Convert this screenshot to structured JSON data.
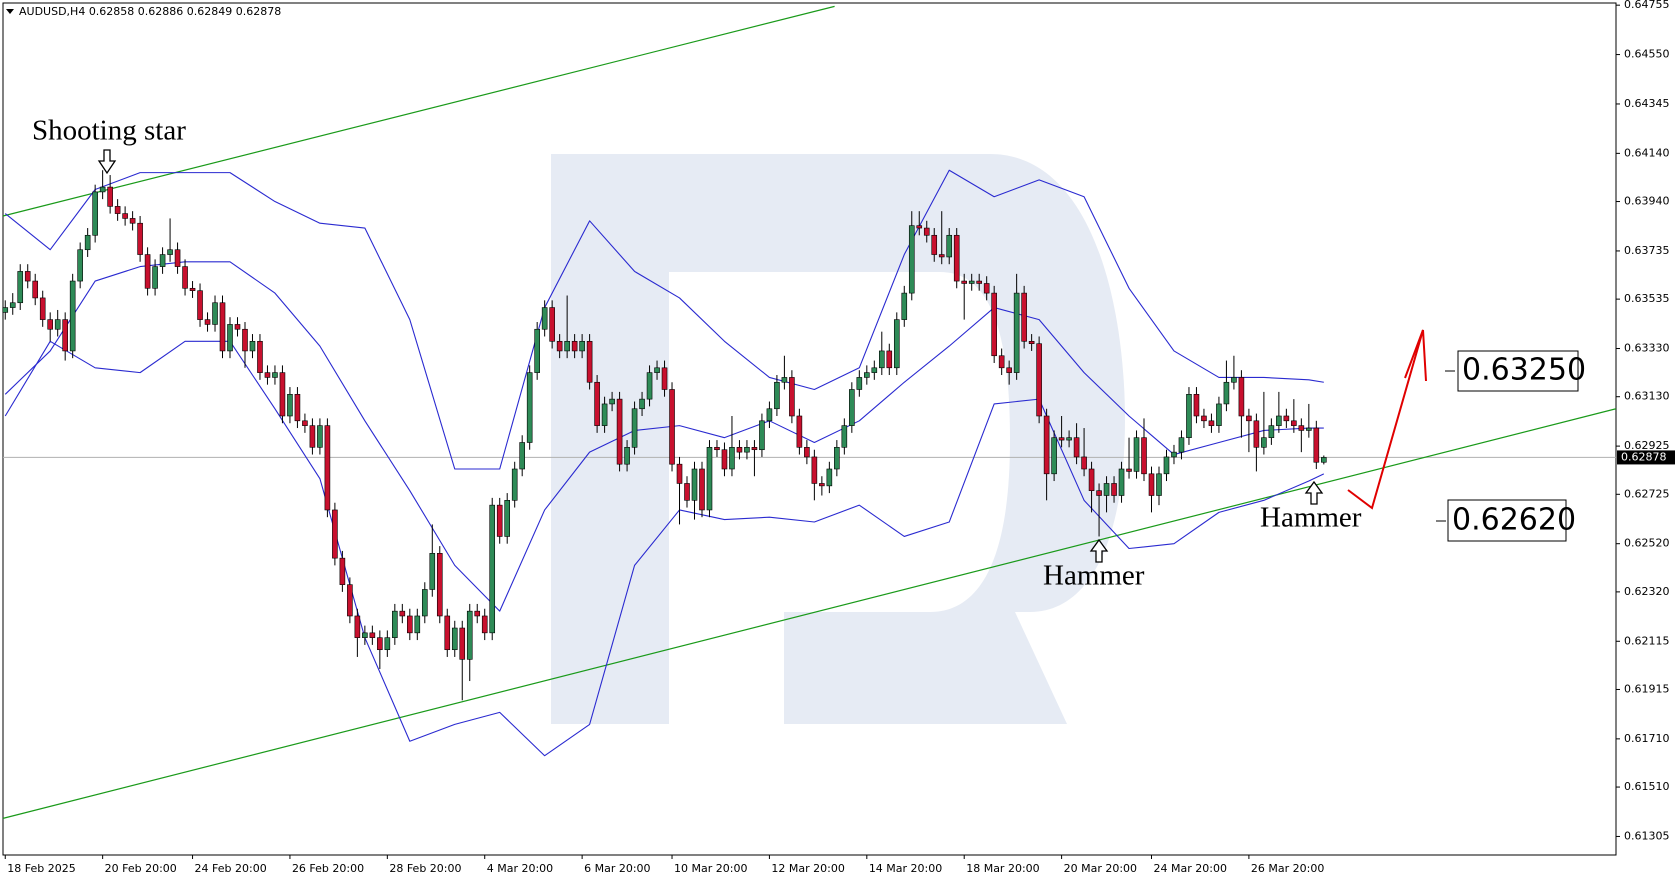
{
  "chart_data": {
    "type": "candlestick",
    "header": "AUDUSD,H4  0.62858 0.62886 0.62849 0.62878",
    "up_color": "#2e8b57",
    "down_color": "#c8102e",
    "xlim": [
      -0.3,
      215
    ],
    "ylim": [
      0.61228,
      0.64764
    ],
    "yticks": [
      0.64755,
      {
        "value": 0.6455,
        "label": "0.64550"
      },
      0.64345,
      {
        "value": 0.6414,
        "label": "0.64140"
      },
      {
        "value": 0.6394,
        "label": "0.63940"
      },
      0.63735,
      0.63535,
      {
        "value": 0.6333,
        "label": "0.63330"
      },
      {
        "value": 0.6313,
        "label": "0.63130"
      },
      0.62925,
      0.62725,
      {
        "value": 0.6252,
        "label": "0.62520"
      },
      {
        "value": 0.6232,
        "label": "0.62320"
      },
      0.62115,
      0.61915,
      {
        "value": 0.6171,
        "label": "0.61710"
      },
      {
        "value": 0.6151,
        "label": "0.61510"
      },
      0.61305
    ],
    "xticks": [
      {
        "value": 0,
        "label": "18 Feb 2025"
      },
      {
        "value": 13,
        "label": "20 Feb 20:00"
      },
      {
        "value": 25,
        "label": "24 Feb 20:00"
      },
      {
        "value": 38,
        "label": "26 Feb 20:00"
      },
      {
        "value": 51,
        "label": "28 Feb 20:00"
      },
      {
        "value": 64,
        "label": "4 Mar 20:00"
      },
      {
        "value": 77,
        "label": "6 Mar 20:00"
      },
      {
        "value": 89,
        "label": "10 Mar 20:00"
      },
      {
        "value": 102,
        "label": "12 Mar 20:00"
      },
      {
        "value": 115,
        "label": "14 Mar 20:00"
      },
      {
        "value": 128,
        "label": "18 Mar 20:00"
      },
      {
        "value": 141,
        "label": "20 Mar 20:00"
      },
      {
        "value": 153,
        "label": "24 Mar 20:00"
      },
      {
        "value": 166,
        "label": "26 Mar 20:00"
      }
    ],
    "last_price": 0.62878,
    "candles": [
      [
        0.6348,
        0.6353,
        0.6345,
        0.635
      ],
      [
        0.635,
        0.6356,
        0.6347,
        0.6352
      ],
      [
        0.6352,
        0.6368,
        0.6349,
        0.6365
      ],
      [
        0.6365,
        0.6368,
        0.6358,
        0.6361
      ],
      [
        0.6361,
        0.6364,
        0.6351,
        0.6354
      ],
      [
        0.6354,
        0.6357,
        0.6342,
        0.6345
      ],
      [
        0.6345,
        0.6348,
        0.6336,
        0.6341
      ],
      [
        0.6341,
        0.6349,
        0.6338,
        0.6345
      ],
      [
        0.6345,
        0.6348,
        0.6328,
        0.6332
      ],
      [
        0.6332,
        0.6364,
        0.6329,
        0.6361
      ],
      [
        0.6361,
        0.6377,
        0.6358,
        0.6374
      ],
      [
        0.6374,
        0.6383,
        0.6371,
        0.638
      ],
      [
        0.638,
        0.6401,
        0.6377,
        0.6398
      ],
      [
        0.6398,
        0.6407,
        0.6395,
        0.64
      ],
      [
        0.64,
        0.6405,
        0.6389,
        0.6392
      ],
      [
        0.6392,
        0.6395,
        0.6386,
        0.6389
      ],
      [
        0.6389,
        0.6392,
        0.6384,
        0.6387
      ],
      [
        0.6387,
        0.639,
        0.6382,
        0.6385
      ],
      [
        0.6385,
        0.6388,
        0.6369,
        0.6372
      ],
      [
        0.6372,
        0.6375,
        0.6355,
        0.6358
      ],
      [
        0.6358,
        0.637,
        0.6355,
        0.6367
      ],
      [
        0.6367,
        0.6375,
        0.6364,
        0.6372
      ],
      [
        0.6372,
        0.6387,
        0.6369,
        0.6374
      ],
      [
        0.6374,
        0.6377,
        0.6364,
        0.6367
      ],
      [
        0.6367,
        0.637,
        0.6355,
        0.6358
      ],
      [
        0.6358,
        0.6361,
        0.6354,
        0.6357
      ],
      [
        0.6357,
        0.636,
        0.6342,
        0.6345
      ],
      [
        0.6345,
        0.6348,
        0.634,
        0.6343
      ],
      [
        0.6343,
        0.6355,
        0.634,
        0.6352
      ],
      [
        0.6352,
        0.6355,
        0.6329,
        0.6332
      ],
      [
        0.6332,
        0.6346,
        0.6329,
        0.6343
      ],
      [
        0.6343,
        0.6346,
        0.6338,
        0.6341
      ],
      [
        0.6341,
        0.6344,
        0.6325,
        0.6332
      ],
      [
        0.6332,
        0.6339,
        0.6329,
        0.6336
      ],
      [
        0.6336,
        0.6339,
        0.632,
        0.6323
      ],
      [
        0.6323,
        0.6326,
        0.6318,
        0.6321
      ],
      [
        0.6321,
        0.6326,
        0.6318,
        0.6323
      ],
      [
        0.6323,
        0.6326,
        0.6302,
        0.6305
      ],
      [
        0.6305,
        0.6317,
        0.6302,
        0.6314
      ],
      [
        0.6314,
        0.6317,
        0.63,
        0.6303
      ],
      [
        0.6303,
        0.6306,
        0.6298,
        0.6301
      ],
      [
        0.6301,
        0.6304,
        0.6289,
        0.6292
      ],
      [
        0.6292,
        0.6304,
        0.6289,
        0.6301
      ],
      [
        0.6301,
        0.6304,
        0.6263,
        0.6266
      ],
      [
        0.6266,
        0.6269,
        0.6243,
        0.6246
      ],
      [
        0.6246,
        0.6249,
        0.6232,
        0.6235
      ],
      [
        0.6235,
        0.6238,
        0.6219,
        0.6222
      ],
      [
        0.6222,
        0.6225,
        0.6205,
        0.6213
      ],
      [
        0.6213,
        0.6218,
        0.621,
        0.6215
      ],
      [
        0.6215,
        0.6218,
        0.621,
        0.6213
      ],
      [
        0.6213,
        0.6216,
        0.62,
        0.6208
      ],
      [
        0.6208,
        0.6216,
        0.6205,
        0.6213
      ],
      [
        0.6213,
        0.6227,
        0.621,
        0.6224
      ],
      [
        0.6224,
        0.6227,
        0.6219,
        0.6222
      ],
      [
        0.6222,
        0.6225,
        0.6212,
        0.6215
      ],
      [
        0.6215,
        0.6225,
        0.6212,
        0.6222
      ],
      [
        0.6222,
        0.6236,
        0.6219,
        0.6233
      ],
      [
        0.6233,
        0.626,
        0.623,
        0.6248
      ],
      [
        0.6248,
        0.6251,
        0.6219,
        0.6222
      ],
      [
        0.6222,
        0.6225,
        0.6205,
        0.6208
      ],
      [
        0.6208,
        0.622,
        0.6205,
        0.6217
      ],
      [
        0.6217,
        0.622,
        0.6187,
        0.6204
      ],
      [
        0.6204,
        0.6227,
        0.6195,
        0.6224
      ],
      [
        0.6224,
        0.6227,
        0.6219,
        0.6222
      ],
      [
        0.6222,
        0.6225,
        0.6212,
        0.6215
      ],
      [
        0.6215,
        0.6271,
        0.6212,
        0.6268
      ],
      [
        0.6268,
        0.6271,
        0.6252,
        0.6255
      ],
      [
        0.6255,
        0.6273,
        0.6252,
        0.627
      ],
      [
        0.627,
        0.6286,
        0.6267,
        0.6283
      ],
      [
        0.6283,
        0.6297,
        0.628,
        0.6294
      ],
      [
        0.6294,
        0.6326,
        0.6291,
        0.6323
      ],
      [
        0.6323,
        0.6344,
        0.632,
        0.6341
      ],
      [
        0.6341,
        0.6353,
        0.6338,
        0.635
      ],
      [
        0.635,
        0.6353,
        0.6333,
        0.6336
      ],
      [
        0.6336,
        0.6339,
        0.6329,
        0.6332
      ],
      [
        0.6332,
        0.6355,
        0.6329,
        0.6336
      ],
      [
        0.6336,
        0.6339,
        0.6329,
        0.6332
      ],
      [
        0.6332,
        0.6339,
        0.6329,
        0.6336
      ],
      [
        0.6336,
        0.6339,
        0.6316,
        0.6319
      ],
      [
        0.6319,
        0.6322,
        0.6298,
        0.6301
      ],
      [
        0.6301,
        0.6313,
        0.6298,
        0.631
      ],
      [
        0.631,
        0.6315,
        0.6307,
        0.6312
      ],
      [
        0.6312,
        0.6315,
        0.6282,
        0.6285
      ],
      [
        0.6285,
        0.6295,
        0.6282,
        0.6292
      ],
      [
        0.6292,
        0.6311,
        0.6289,
        0.6308
      ],
      [
        0.6308,
        0.6315,
        0.6305,
        0.6312
      ],
      [
        0.6312,
        0.6326,
        0.6309,
        0.6323
      ],
      [
        0.6323,
        0.6328,
        0.632,
        0.6325
      ],
      [
        0.6325,
        0.6328,
        0.6313,
        0.6316
      ],
      [
        0.6316,
        0.6319,
        0.6282,
        0.6285
      ],
      [
        0.6285,
        0.6288,
        0.626,
        0.6277
      ],
      [
        0.6277,
        0.628,
        0.6267,
        0.627
      ],
      [
        0.627,
        0.6286,
        0.6262,
        0.6283
      ],
      [
        0.6283,
        0.6286,
        0.6263,
        0.6266
      ],
      [
        0.6266,
        0.6295,
        0.6263,
        0.6292
      ],
      [
        0.6292,
        0.6295,
        0.6288,
        0.6291
      ],
      [
        0.6291,
        0.6294,
        0.628,
        0.6283
      ],
      [
        0.6283,
        0.6305,
        0.628,
        0.6292
      ],
      [
        0.6292,
        0.6295,
        0.6287,
        0.629
      ],
      [
        0.629,
        0.6295,
        0.6287,
        0.6292
      ],
      [
        0.6292,
        0.6295,
        0.628,
        0.6291
      ],
      [
        0.6291,
        0.6306,
        0.6288,
        0.6303
      ],
      [
        0.6303,
        0.6311,
        0.63,
        0.6308
      ],
      [
        0.6308,
        0.6322,
        0.6305,
        0.6319
      ],
      [
        0.6319,
        0.633,
        0.6316,
        0.6321
      ],
      [
        0.6321,
        0.6324,
        0.6302,
        0.6305
      ],
      [
        0.6305,
        0.6308,
        0.6289,
        0.6292
      ],
      [
        0.6292,
        0.6295,
        0.6285,
        0.6288
      ],
      [
        0.6288,
        0.6291,
        0.627,
        0.6277
      ],
      [
        0.6277,
        0.628,
        0.6272,
        0.6276
      ],
      [
        0.6276,
        0.6286,
        0.6273,
        0.6283
      ],
      [
        0.6283,
        0.6295,
        0.628,
        0.6292
      ],
      [
        0.6292,
        0.6304,
        0.6289,
        0.6301
      ],
      [
        0.6301,
        0.6319,
        0.6298,
        0.6316
      ],
      [
        0.6316,
        0.6324,
        0.6313,
        0.6321
      ],
      [
        0.6321,
        0.6326,
        0.6318,
        0.6323
      ],
      [
        0.6323,
        0.6328,
        0.632,
        0.6325
      ],
      [
        0.6325,
        0.634,
        0.6322,
        0.6332
      ],
      [
        0.6332,
        0.6335,
        0.6322,
        0.6325
      ],
      [
        0.6325,
        0.6348,
        0.6322,
        0.6345
      ],
      [
        0.6345,
        0.6359,
        0.6342,
        0.6356
      ],
      [
        0.6356,
        0.639,
        0.6353,
        0.6384
      ],
      [
        0.6384,
        0.639,
        0.638,
        0.6383
      ],
      [
        0.6383,
        0.6386,
        0.6377,
        0.638
      ],
      [
        0.638,
        0.6383,
        0.6369,
        0.6372
      ],
      [
        0.6372,
        0.639,
        0.6368,
        0.6371
      ],
      [
        0.6371,
        0.6383,
        0.6368,
        0.638
      ],
      [
        0.638,
        0.6383,
        0.6358,
        0.6361
      ],
      [
        0.6361,
        0.6364,
        0.6345,
        0.636
      ],
      [
        0.636,
        0.6364,
        0.6357,
        0.6361
      ],
      [
        0.6361,
        0.6364,
        0.6357,
        0.636
      ],
      [
        0.636,
        0.6363,
        0.6353,
        0.6356
      ],
      [
        0.6356,
        0.6359,
        0.6327,
        0.633
      ],
      [
        0.633,
        0.6333,
        0.6322,
        0.6325
      ],
      [
        0.6325,
        0.6328,
        0.6318,
        0.6323
      ],
      [
        0.6323,
        0.6364,
        0.632,
        0.6356
      ],
      [
        0.6356,
        0.6359,
        0.6333,
        0.6336
      ],
      [
        0.6336,
        0.6339,
        0.6332,
        0.6335
      ],
      [
        0.6335,
        0.6338,
        0.6302,
        0.6305
      ],
      [
        0.6305,
        0.6308,
        0.627,
        0.6281
      ],
      [
        0.6281,
        0.6299,
        0.6278,
        0.6296
      ],
      [
        0.6296,
        0.6305,
        0.6292,
        0.6295
      ],
      [
        0.6295,
        0.6299,
        0.6292,
        0.6296
      ],
      [
        0.6296,
        0.6302,
        0.6285,
        0.6288
      ],
      [
        0.6288,
        0.63,
        0.628,
        0.6283
      ],
      [
        0.6283,
        0.6286,
        0.6265,
        0.6274
      ],
      [
        0.6274,
        0.6277,
        0.6255,
        0.6272
      ],
      [
        0.6272,
        0.628,
        0.6265,
        0.6277
      ],
      [
        0.6277,
        0.628,
        0.6269,
        0.6272
      ],
      [
        0.6272,
        0.6286,
        0.6269,
        0.6283
      ],
      [
        0.6283,
        0.6296,
        0.6279,
        0.6282
      ],
      [
        0.6282,
        0.6299,
        0.6279,
        0.6296
      ],
      [
        0.6296,
        0.6304,
        0.6278,
        0.6281
      ],
      [
        0.6281,
        0.6284,
        0.6265,
        0.6272
      ],
      [
        0.6272,
        0.6284,
        0.6268,
        0.6281
      ],
      [
        0.6281,
        0.6291,
        0.6278,
        0.6288
      ],
      [
        0.6288,
        0.6293,
        0.6285,
        0.629
      ],
      [
        0.629,
        0.6299,
        0.6287,
        0.6296
      ],
      [
        0.6296,
        0.6317,
        0.6293,
        0.6314
      ],
      [
        0.6314,
        0.6317,
        0.6302,
        0.6305
      ],
      [
        0.6305,
        0.6308,
        0.63,
        0.6303
      ],
      [
        0.6303,
        0.6306,
        0.6298,
        0.6301
      ],
      [
        0.6301,
        0.6313,
        0.6298,
        0.631
      ],
      [
        0.631,
        0.6328,
        0.6307,
        0.6319
      ],
      [
        0.6319,
        0.633,
        0.6316,
        0.6321
      ],
      [
        0.6321,
        0.6324,
        0.6296,
        0.6305
      ],
      [
        0.6305,
        0.6308,
        0.629,
        0.6303
      ],
      [
        0.6303,
        0.6306,
        0.6282,
        0.6292
      ],
      [
        0.6292,
        0.6315,
        0.6289,
        0.6296
      ],
      [
        0.6296,
        0.6304,
        0.6293,
        0.6301
      ],
      [
        0.6301,
        0.6315,
        0.6298,
        0.6305
      ],
      [
        0.6305,
        0.6308,
        0.63,
        0.6303
      ],
      [
        0.6303,
        0.6312,
        0.6298,
        0.6301
      ],
      [
        0.6301,
        0.6304,
        0.629,
        0.6299
      ],
      [
        0.6299,
        0.631,
        0.6296,
        0.63
      ],
      [
        0.63,
        0.6303,
        0.6283,
        0.62858
      ],
      [
        0.62858,
        0.62886,
        0.62849,
        0.62878
      ]
    ],
    "bollinger": {
      "color": "#2a2ad0",
      "x": [
        0,
        6,
        12,
        18,
        24,
        30,
        36,
        42,
        48,
        54,
        60,
        66,
        72,
        78,
        84,
        90,
        96,
        102,
        108,
        114,
        120,
        126,
        132,
        138,
        144,
        150,
        156,
        162,
        168,
        174,
        176
      ],
      "upper": [
        0.6389,
        0.6374,
        0.6399,
        0.6406,
        0.6406,
        0.6406,
        0.6394,
        0.6385,
        0.6383,
        0.6345,
        0.6283,
        0.6283,
        0.635,
        0.6386,
        0.6365,
        0.6354,
        0.6336,
        0.6321,
        0.6316,
        0.6325,
        0.6372,
        0.6407,
        0.6396,
        0.6403,
        0.6396,
        0.6358,
        0.6332,
        0.6321,
        0.6321,
        0.632,
        0.6319
      ],
      "middle": [
        0.6314,
        0.6332,
        0.6361,
        0.6367,
        0.6369,
        0.6369,
        0.6356,
        0.6334,
        0.6303,
        0.6274,
        0.6243,
        0.6224,
        0.6266,
        0.629,
        0.6299,
        0.6301,
        0.6296,
        0.6303,
        0.6294,
        0.6303,
        0.6319,
        0.6334,
        0.635,
        0.6345,
        0.6323,
        0.6305,
        0.6289,
        0.6294,
        0.6299,
        0.63,
        0.63
      ],
      "lower": [
        0.6305,
        0.6336,
        0.6325,
        0.6323,
        0.6336,
        0.6336,
        0.6308,
        0.6279,
        0.6213,
        0.617,
        0.6177,
        0.6182,
        0.6164,
        0.6177,
        0.6243,
        0.6266,
        0.6262,
        0.6263,
        0.6261,
        0.6268,
        0.6255,
        0.6261,
        0.631,
        0.6312,
        0.627,
        0.625,
        0.6252,
        0.6265,
        0.627,
        0.6278,
        0.6281
      ]
    },
    "trend_lines": {
      "color": "#1a9a1a",
      "lines": [
        {
          "x": [
            -0.3,
            110.7
          ],
          "y": [
            0.6388,
            0.6475
          ]
        },
        {
          "x": [
            -0.3,
            215
          ],
          "y": [
            0.6138,
            0.6308
          ]
        }
      ]
    },
    "annotations": [
      "Shooting star",
      "Hammer",
      "Hammer",
      "0.63250",
      "0.62620"
    ]
  }
}
